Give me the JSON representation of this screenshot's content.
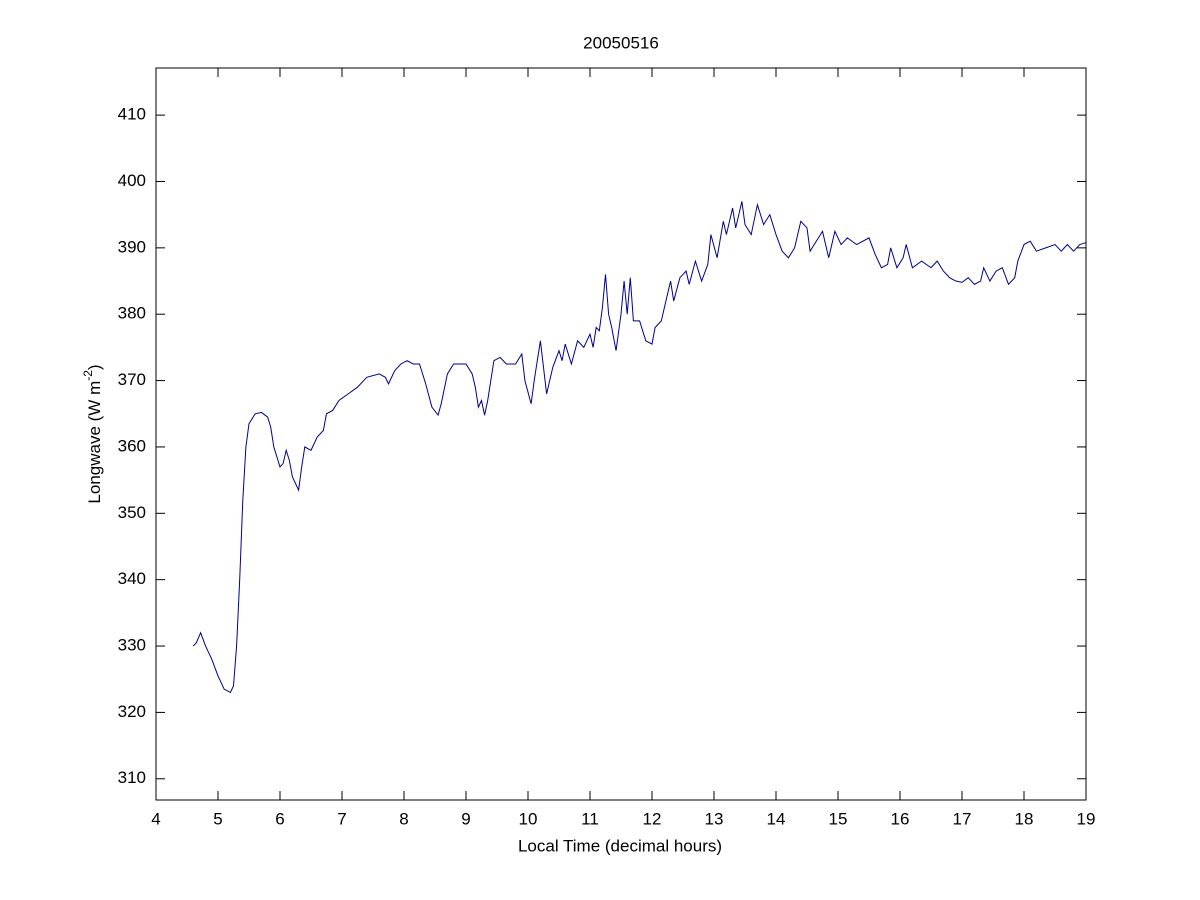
{
  "chart_data": {
    "type": "line",
    "title": "20050516",
    "xlabel": "Local Time (decimal hours)",
    "ylabel": {
      "text": "Longwave (W m",
      "sup": "-2",
      "end": ")"
    },
    "color": "#00008b",
    "x": [
      4.6,
      4.65,
      4.72,
      4.8,
      4.9,
      5.0,
      5.1,
      5.2,
      5.25,
      5.3,
      5.35,
      5.4,
      5.45,
      5.5,
      5.6,
      5.7,
      5.8,
      5.85,
      5.9,
      6.0,
      6.05,
      6.1,
      6.15,
      6.2,
      6.3,
      6.35,
      6.4,
      6.5,
      6.6,
      6.7,
      6.75,
      6.85,
      6.95,
      7.1,
      7.25,
      7.4,
      7.6,
      7.7,
      7.75,
      7.85,
      7.95,
      8.05,
      8.15,
      8.25,
      8.35,
      8.45,
      8.55,
      8.6,
      8.7,
      8.8,
      8.9,
      9.0,
      9.1,
      9.15,
      9.2,
      9.25,
      9.3,
      9.35,
      9.45,
      9.55,
      9.65,
      9.8,
      9.9,
      9.95,
      10.05,
      10.1,
      10.2,
      10.25,
      10.3,
      10.4,
      10.5,
      10.55,
      10.6,
      10.7,
      10.8,
      10.9,
      11.0,
      11.05,
      11.1,
      11.15,
      11.2,
      11.25,
      11.3,
      11.35,
      11.42,
      11.5,
      11.55,
      11.6,
      11.65,
      11.7,
      11.8,
      11.9,
      12.0,
      12.05,
      12.15,
      12.25,
      12.3,
      12.35,
      12.45,
      12.55,
      12.6,
      12.7,
      12.8,
      12.9,
      12.95,
      13.05,
      13.15,
      13.2,
      13.3,
      13.35,
      13.45,
      13.5,
      13.6,
      13.7,
      13.8,
      13.9,
      14.0,
      14.1,
      14.2,
      14.3,
      14.4,
      14.5,
      14.55,
      14.65,
      14.75,
      14.85,
      14.95,
      15.05,
      15.15,
      15.3,
      15.5,
      15.6,
      15.7,
      15.8,
      15.85,
      15.95,
      16.05,
      16.1,
      16.2,
      16.35,
      16.5,
      16.6,
      16.7,
      16.8,
      16.9,
      17.0,
      17.1,
      17.2,
      17.3,
      17.35,
      17.45,
      17.55,
      17.65,
      17.75,
      17.85,
      17.9,
      18.0,
      18.1,
      18.2,
      18.35,
      18.5,
      18.6,
      18.7,
      18.8,
      18.9,
      19.0
    ],
    "values": [
      330,
      330.5,
      332,
      330,
      328,
      325.5,
      323.5,
      323,
      324,
      330,
      340,
      352,
      360,
      363.5,
      365,
      365.2,
      364.5,
      363,
      360,
      357,
      357.5,
      359.5,
      358,
      355.5,
      353.5,
      357,
      360,
      359.5,
      361.5,
      362.5,
      365,
      365.5,
      367,
      368,
      369,
      370.5,
      371,
      370.5,
      369.5,
      371.5,
      372.5,
      373,
      372.5,
      372.5,
      369.5,
      366,
      364.8,
      366.5,
      371,
      372.5,
      372.5,
      372.5,
      371,
      369,
      366,
      367,
      364.8,
      367,
      373,
      373.5,
      372.5,
      372.5,
      374,
      370,
      366.5,
      370,
      376,
      372,
      368,
      372,
      374.5,
      373,
      375.5,
      372.5,
      376,
      375,
      377,
      375,
      378,
      377.5,
      381,
      386,
      380,
      378,
      374.5,
      380,
      385,
      380,
      385.5,
      379,
      379,
      376,
      375.5,
      378,
      379,
      383,
      385,
      382,
      385.5,
      386.5,
      384.5,
      388,
      385,
      387.5,
      392,
      388.5,
      394,
      392,
      396,
      393,
      397,
      393.5,
      392,
      396.5,
      393.5,
      395,
      392,
      389.5,
      388.5,
      390,
      394,
      393,
      389.5,
      391,
      392.5,
      388.5,
      392.5,
      390.5,
      391.5,
      390.5,
      391.5,
      389,
      387,
      387.5,
      390,
      387,
      388.5,
      390.5,
      387,
      388,
      387,
      388,
      386.5,
      385.5,
      385,
      384.8,
      385.5,
      384.5,
      385,
      387,
      385,
      386.5,
      387,
      384.5,
      385.5,
      388,
      390.5,
      391,
      389.5,
      390,
      390.5,
      389.5,
      390.5,
      389.5,
      390.5,
      390.8
    ],
    "xlim": [
      4,
      19
    ],
    "ylim": [
      306.8,
      417.1
    ],
    "xticks": [
      4,
      5,
      6,
      7,
      8,
      9,
      10,
      11,
      12,
      13,
      14,
      15,
      16,
      17,
      18,
      19
    ],
    "yticks": [
      310,
      320,
      330,
      340,
      350,
      360,
      370,
      380,
      390,
      400,
      410
    ]
  }
}
